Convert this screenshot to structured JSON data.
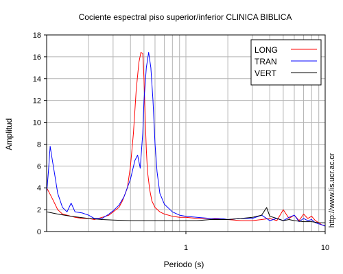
{
  "chart_data": {
    "type": "line",
    "title": "Cociente espectral piso superior/inferior  CLINICA BIBLICA",
    "xlabel": "Periodo (s)",
    "ylabel": "Amplitud",
    "xscale": "log",
    "xlim": [
      0.1,
      10
    ],
    "ylim": [
      0,
      18
    ],
    "yticks": [
      "0",
      "2",
      "4",
      "6",
      "8",
      "10",
      "12",
      "14",
      "16",
      "18"
    ],
    "xticks": [
      {
        "value": 1,
        "label": "1"
      },
      {
        "value": 10,
        "label": "10"
      }
    ],
    "grid": true,
    "legend_position": "top-right",
    "side_text": "http://www.lis.ucr.ac.cr",
    "series": [
      {
        "name": "LONG",
        "color": "#ff0000",
        "x": [
          0.1,
          0.105,
          0.11,
          0.115,
          0.12,
          0.13,
          0.14,
          0.15,
          0.16,
          0.18,
          0.2,
          0.22,
          0.25,
          0.28,
          0.3,
          0.33,
          0.35,
          0.38,
          0.4,
          0.42,
          0.44,
          0.46,
          0.475,
          0.49,
          0.5,
          0.51,
          0.52,
          0.53,
          0.55,
          0.57,
          0.6,
          0.65,
          0.7,
          0.8,
          0.9,
          1.0,
          1.2,
          1.5,
          1.8,
          2.0,
          2.5,
          3.0,
          3.5,
          4.0,
          4.5,
          5.0,
          5.5,
          6.0,
          6.5,
          7.0,
          7.5,
          8.0,
          8.5,
          9.0,
          9.5,
          10.0
        ],
        "y": [
          4.0,
          3.5,
          3.0,
          2.5,
          2.0,
          1.6,
          1.5,
          1.4,
          1.3,
          1.2,
          1.2,
          1.1,
          1.3,
          1.5,
          1.8,
          2.2,
          2.8,
          4.0,
          6.0,
          9.0,
          13.0,
          15.5,
          16.4,
          16.3,
          14.0,
          10.5,
          7.5,
          5.5,
          3.8,
          2.8,
          2.2,
          1.8,
          1.6,
          1.4,
          1.3,
          1.3,
          1.2,
          1.2,
          1.1,
          1.1,
          1.0,
          1.0,
          1.1,
          1.2,
          1.0,
          2.0,
          1.2,
          1.5,
          1.0,
          1.6,
          1.2,
          1.4,
          1.0,
          0.8,
          0.6,
          0.5
        ]
      },
      {
        "name": "TRAN",
        "color": "#0000ff",
        "x": [
          0.1,
          0.103,
          0.106,
          0.11,
          0.115,
          0.12,
          0.13,
          0.14,
          0.15,
          0.16,
          0.18,
          0.2,
          0.22,
          0.25,
          0.28,
          0.3,
          0.33,
          0.36,
          0.4,
          0.43,
          0.45,
          0.47,
          0.49,
          0.5,
          0.52,
          0.54,
          0.56,
          0.58,
          0.6,
          0.62,
          0.65,
          0.7,
          0.8,
          0.9,
          1.0,
          1.2,
          1.5,
          1.8,
          2.0,
          2.5,
          3.0,
          3.5,
          4.0,
          4.5,
          5.0,
          5.5,
          6.0,
          6.5,
          7.0,
          7.5,
          8.0,
          8.5,
          9.0,
          9.5,
          10.0
        ],
        "y": [
          3.5,
          5.5,
          7.8,
          6.5,
          5.0,
          3.5,
          2.2,
          1.8,
          2.6,
          1.8,
          1.7,
          1.5,
          1.2,
          1.2,
          1.6,
          1.9,
          2.4,
          3.2,
          4.8,
          6.5,
          7.0,
          5.8,
          9.0,
          12.0,
          15.0,
          16.4,
          15.0,
          12.0,
          8.0,
          5.5,
          3.5,
          2.5,
          1.8,
          1.5,
          1.4,
          1.3,
          1.2,
          1.2,
          1.1,
          1.2,
          1.2,
          1.5,
          1.0,
          1.2,
          1.0,
          1.3,
          1.5,
          0.9,
          1.2,
          1.0,
          1.1,
          0.8,
          0.7,
          0.6,
          0.5
        ]
      },
      {
        "name": "VERT",
        "color": "#000000",
        "x": [
          0.1,
          0.12,
          0.15,
          0.2,
          0.25,
          0.3,
          0.4,
          0.5,
          0.6,
          0.8,
          1.0,
          1.2,
          1.5,
          2.0,
          2.5,
          3.0,
          3.5,
          3.8,
          4.0,
          4.5,
          5.0,
          5.5,
          6.0,
          7.0,
          8.0,
          9.0,
          10.0
        ],
        "y": [
          1.8,
          1.6,
          1.4,
          1.2,
          1.1,
          1.05,
          1.0,
          1.0,
          1.0,
          1.0,
          1.0,
          1.0,
          1.1,
          1.1,
          1.2,
          1.3,
          1.5,
          2.2,
          1.4,
          1.2,
          1.0,
          1.1,
          1.0,
          0.9,
          0.9,
          0.8,
          0.8
        ]
      }
    ]
  }
}
